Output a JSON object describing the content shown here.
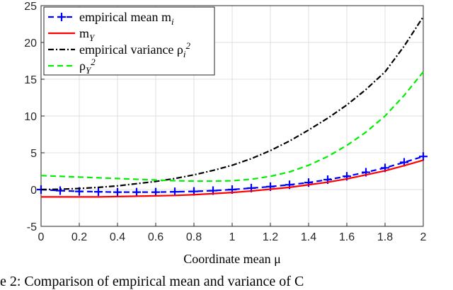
{
  "chart_data": {
    "type": "line",
    "xlabel": "Coordinate mean μ",
    "caption": "e 2: Comparison of empirical mean and variance of C",
    "x": [
      0,
      0.1,
      0.2,
      0.3,
      0.4,
      0.5,
      0.6,
      0.7,
      0.8,
      0.9,
      1,
      1.1,
      1.2,
      1.3,
      1.4,
      1.5,
      1.6,
      1.7,
      1.8,
      1.9,
      2
    ],
    "series": [
      {
        "name": "empirical mean m_i",
        "color": "#0000ff",
        "dash": "dashed",
        "marker": "+",
        "values": [
          0,
          -0.15,
          -0.25,
          -0.3,
          -0.35,
          -0.35,
          -0.35,
          -0.3,
          -0.25,
          -0.15,
          0,
          0.2,
          0.4,
          0.65,
          0.95,
          1.35,
          1.8,
          2.35,
          2.95,
          3.7,
          4.5
        ]
      },
      {
        "name": "m_Y",
        "color": "#ff0000",
        "dash": "solid",
        "values": [
          -1,
          -1,
          -1,
          -1,
          -0.95,
          -0.9,
          -0.85,
          -0.8,
          -0.7,
          -0.55,
          -0.4,
          -0.2,
          0.05,
          0.3,
          0.65,
          1,
          1.45,
          2,
          2.55,
          3.25,
          4
        ]
      },
      {
        "name": "empirical variance ρ_i^2",
        "color": "#000000",
        "dash": "dashdot",
        "values": [
          0,
          0.05,
          0.15,
          0.3,
          0.5,
          0.8,
          1.1,
          1.5,
          2,
          2.6,
          3.3,
          4.2,
          5.3,
          6.6,
          8.1,
          9.7,
          11.5,
          13.6,
          16,
          19.5,
          23.5
        ]
      },
      {
        "name": "ρ_Y^2",
        "color": "#00ee00",
        "dash": "dashed",
        "values": [
          1.9,
          1.8,
          1.7,
          1.6,
          1.5,
          1.4,
          1.3,
          1.2,
          1.15,
          1.15,
          1.2,
          1.4,
          1.8,
          2.4,
          3.3,
          4.5,
          6,
          7.8,
          10,
          12.8,
          16
        ]
      }
    ],
    "xlim": [
      0,
      2
    ],
    "xticks": [
      0,
      0.2,
      0.4,
      0.6,
      0.8,
      1,
      1.2,
      1.4,
      1.6,
      1.8,
      2
    ],
    "ylim": [
      -5,
      25
    ],
    "yticks": [
      -5,
      0,
      5,
      10,
      15,
      20,
      25
    ],
    "grid": true,
    "legend": "upper-left"
  }
}
